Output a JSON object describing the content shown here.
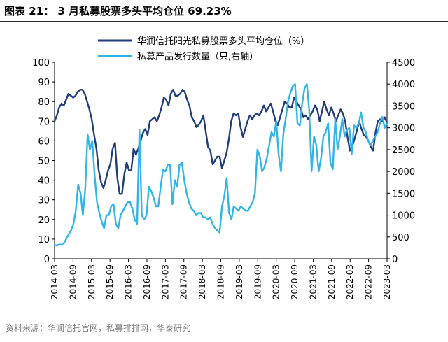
{
  "title": "图表 21：  3 月私募股票多头平均仓位 69.23%",
  "source": "资料来源：华润信托官网，私募排排网，华泰研究",
  "colors": {
    "position_line": "#1f3d7a",
    "issuance_line": "#2fb5e8"
  },
  "chart_data": {
    "type": "line",
    "legend_position": "top",
    "grid": false,
    "x_tick_labels": [
      "2014-03",
      "2014-09",
      "2015-03",
      "2015-09",
      "2016-03",
      "2016-09",
      "2017-03",
      "2017-09",
      "2018-03",
      "2018-09",
      "2019-03",
      "2019-09",
      "2020-03",
      "2020-09",
      "2021-03",
      "2021-09",
      "2022-03",
      "2022-09",
      "2023-03"
    ],
    "left_axis": {
      "ylim": [
        0,
        100
      ],
      "ticks": [
        0,
        10,
        20,
        30,
        40,
        50,
        60,
        70,
        80,
        90,
        100
      ]
    },
    "right_axis": {
      "ylim": [
        0,
        4500
      ],
      "ticks": [
        0,
        500,
        1000,
        1500,
        2000,
        2500,
        3000,
        3500,
        4000,
        4500
      ]
    },
    "series": [
      {
        "name": "华润信托阳光私募股票多头平均仓位（%）",
        "axis": "left",
        "values": [
          70,
          73,
          77,
          79,
          78,
          81,
          84,
          83,
          82,
          83,
          85,
          86,
          86,
          84,
          80,
          76,
          71,
          63,
          56,
          45,
          39,
          36,
          40,
          45,
          48,
          56,
          59,
          41,
          33,
          33,
          43,
          49,
          45,
          45,
          56,
          53,
          56,
          60,
          64,
          66,
          63,
          70,
          71,
          72,
          70,
          73,
          77,
          82,
          81,
          78,
          84,
          86,
          83,
          83,
          84,
          86,
          85,
          81,
          78,
          72,
          70,
          67,
          68,
          70,
          73,
          65,
          57,
          55,
          48,
          50,
          52,
          52,
          46,
          50,
          54,
          61,
          70,
          74,
          73,
          74,
          67,
          62,
          66,
          70,
          73,
          71,
          73,
          74,
          73,
          75,
          78,
          75,
          77,
          79,
          75,
          70,
          68,
          72,
          76,
          80,
          79,
          77,
          77,
          82,
          80,
          78,
          76,
          72,
          73,
          71,
          73,
          75,
          78,
          76,
          70,
          75,
          80,
          76,
          73,
          77,
          74,
          70,
          73,
          76,
          74,
          70,
          62,
          55,
          57,
          61,
          65,
          70,
          66,
          63,
          62,
          60,
          57,
          55,
          64,
          70,
          71,
          70,
          72,
          69.23
        ]
      },
      {
        "name": "私募产品发行数量（只,右轴）",
        "axis": "right",
        "values": [
          320,
          300,
          330,
          320,
          360,
          460,
          560,
          650,
          800,
          1100,
          1700,
          1500,
          1000,
          1600,
          2850,
          2500,
          2700,
          1900,
          1300,
          1050,
          850,
          700,
          1000,
          1000,
          1200,
          1250,
          800,
          700,
          1000,
          1100,
          1200,
          1300,
          1300,
          1150,
          900,
          800,
          2950,
          1000,
          900,
          1000,
          1650,
          1550,
          1400,
          1200,
          1200,
          1650,
          2050,
          2000,
          2150,
          2150,
          1250,
          1800,
          1650,
          2150,
          2200,
          1800,
          1500,
          1300,
          1150,
          1100,
          1000,
          1050,
          1050,
          950,
          950,
          900,
          950,
          800,
          700,
          650,
          600,
          1200,
          1450,
          1850,
          1050,
          900,
          1200,
          1150,
          1100,
          1200,
          1150,
          1100,
          1100,
          1200,
          1300,
          1500,
          2500,
          2350,
          2000,
          2100,
          2300,
          2600,
          2900,
          2800,
          3150,
          2400,
          2000,
          2850,
          3200,
          3600,
          3800,
          3950,
          4000,
          3100,
          3050,
          3550,
          3900,
          4000,
          3400,
          2000,
          2800,
          2600,
          2000,
          2300,
          2800,
          2900,
          3100,
          2200,
          2050,
          3200,
          2500,
          2800,
          3200,
          2800,
          2950,
          3000,
          2400,
          3050,
          3000,
          3100,
          3350,
          3000,
          2900,
          2700,
          2600,
          2700,
          2800,
          2900,
          3100,
          3250,
          3000,
          3100
        ]
      }
    ]
  }
}
